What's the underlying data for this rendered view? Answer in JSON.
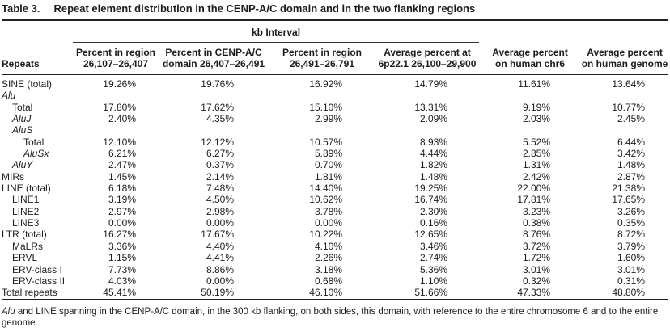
{
  "table": {
    "label": "Table 3.",
    "title": "Repeat element distribution in the CENP-A/C domain and in the two flanking regions",
    "span_header": "kb Interval",
    "columns": [
      {
        "label": "Repeats"
      },
      {
        "line1": "Percent in region",
        "line2": "26,107–26,407"
      },
      {
        "line1": "Percent in CENP-A/C",
        "line2": "domain 26,407–26,491"
      },
      {
        "line1": "Percent in region",
        "line2": "26,491–26,791"
      },
      {
        "line1": "Average percent at",
        "line2": "6p22.1 26,100–29,900"
      },
      {
        "line1": "Average percent",
        "line2": "on human chr6"
      },
      {
        "line1": "Average percent",
        "line2": "on human genome"
      }
    ],
    "rows": [
      {
        "name": "SINE (total)",
        "indent": 0,
        "italic": false,
        "values": [
          "19.26%",
          "19.76%",
          "16.92%",
          "14.79%",
          "11.61%",
          "13.64%"
        ]
      },
      {
        "name": "Alu",
        "indent": 0,
        "italic": true,
        "values": []
      },
      {
        "name": "Total",
        "indent": 1,
        "italic": false,
        "values": [
          "17.80%",
          "17.62%",
          "15.10%",
          "13.31%",
          "9.19%",
          "10.77%"
        ]
      },
      {
        "name": "AluJ",
        "indent": 1,
        "italic": true,
        "values": [
          "2.40%",
          "4.35%",
          "2.99%",
          "2.09%",
          "2.03%",
          "2.45%"
        ]
      },
      {
        "name": "AluS",
        "indent": 1,
        "italic": true,
        "values": []
      },
      {
        "name": "Total",
        "indent": 2,
        "italic": false,
        "values": [
          "12.10%",
          "12.12%",
          "10.57%",
          "8.93%",
          "5.52%",
          "6.44%"
        ]
      },
      {
        "name": "AluSx",
        "indent": 2,
        "italic": true,
        "values": [
          "6.21%",
          "6.27%",
          "5.89%",
          "4.44%",
          "2.85%",
          "3.42%"
        ]
      },
      {
        "name": "AluY",
        "indent": 1,
        "italic": true,
        "values": [
          "2.47%",
          "0.37%",
          "0.70%",
          "1.82%",
          "1.31%",
          "1.48%"
        ]
      },
      {
        "name": "MIRs",
        "indent": 0,
        "italic": false,
        "values": [
          "1.45%",
          "2.14%",
          "1.81%",
          "1.48%",
          "2.42%",
          "2.87%"
        ]
      },
      {
        "name": "LINE (total)",
        "indent": 0,
        "italic": false,
        "values": [
          "6.18%",
          "7.48%",
          "14.40%",
          "19.25%",
          "22.00%",
          "21.38%"
        ]
      },
      {
        "name": "LINE1",
        "indent": 1,
        "italic": false,
        "values": [
          "3.19%",
          "4.50%",
          "10.62%",
          "16.74%",
          "17.81%",
          "17.65%"
        ]
      },
      {
        "name": "LINE2",
        "indent": 1,
        "italic": false,
        "values": [
          "2.97%",
          "2.98%",
          "3.78%",
          "2.30%",
          "3.23%",
          "3.26%"
        ]
      },
      {
        "name": "LINE3",
        "indent": 1,
        "italic": false,
        "values": [
          "0.00%",
          "0.00%",
          "0.00%",
          "0.16%",
          "0.38%",
          "0.35%"
        ]
      },
      {
        "name": "LTR (total)",
        "indent": 0,
        "italic": false,
        "values": [
          "16.27%",
          "17.67%",
          "10.22%",
          "12.65%",
          "8.76%",
          "8.72%"
        ]
      },
      {
        "name": "MaLRs",
        "indent": 1,
        "italic": false,
        "values": [
          "3.36%",
          "4.40%",
          "4.10%",
          "3.46%",
          "3.72%",
          "3.79%"
        ]
      },
      {
        "name": "ERVL",
        "indent": 1,
        "italic": false,
        "values": [
          "1.15%",
          "4.41%",
          "2.26%",
          "2.74%",
          "1.72%",
          "1.60%"
        ]
      },
      {
        "name": "ERV-class I",
        "indent": 1,
        "italic": false,
        "values": [
          "7.73%",
          "8.86%",
          "3.18%",
          "5.36%",
          "3.01%",
          "3.01%"
        ]
      },
      {
        "name": "ERV-class II",
        "indent": 1,
        "italic": false,
        "values": [
          "4.03%",
          "0.00%",
          "0.68%",
          "1.10%",
          "0.32%",
          "0.31%"
        ]
      },
      {
        "name": "Total repeats",
        "indent": 0,
        "italic": false,
        "values": [
          "45.41%",
          "50.19%",
          "46.10%",
          "51.66%",
          "47.33%",
          "48.80%"
        ]
      }
    ],
    "footnote_italic": "Alu",
    "footnote_rest": " and LINE spanning in the CENP-A/C domain, in the 300 kb flanking, on both sides, this domain, with reference to the entire chromosome 6 and to the entire genome."
  }
}
